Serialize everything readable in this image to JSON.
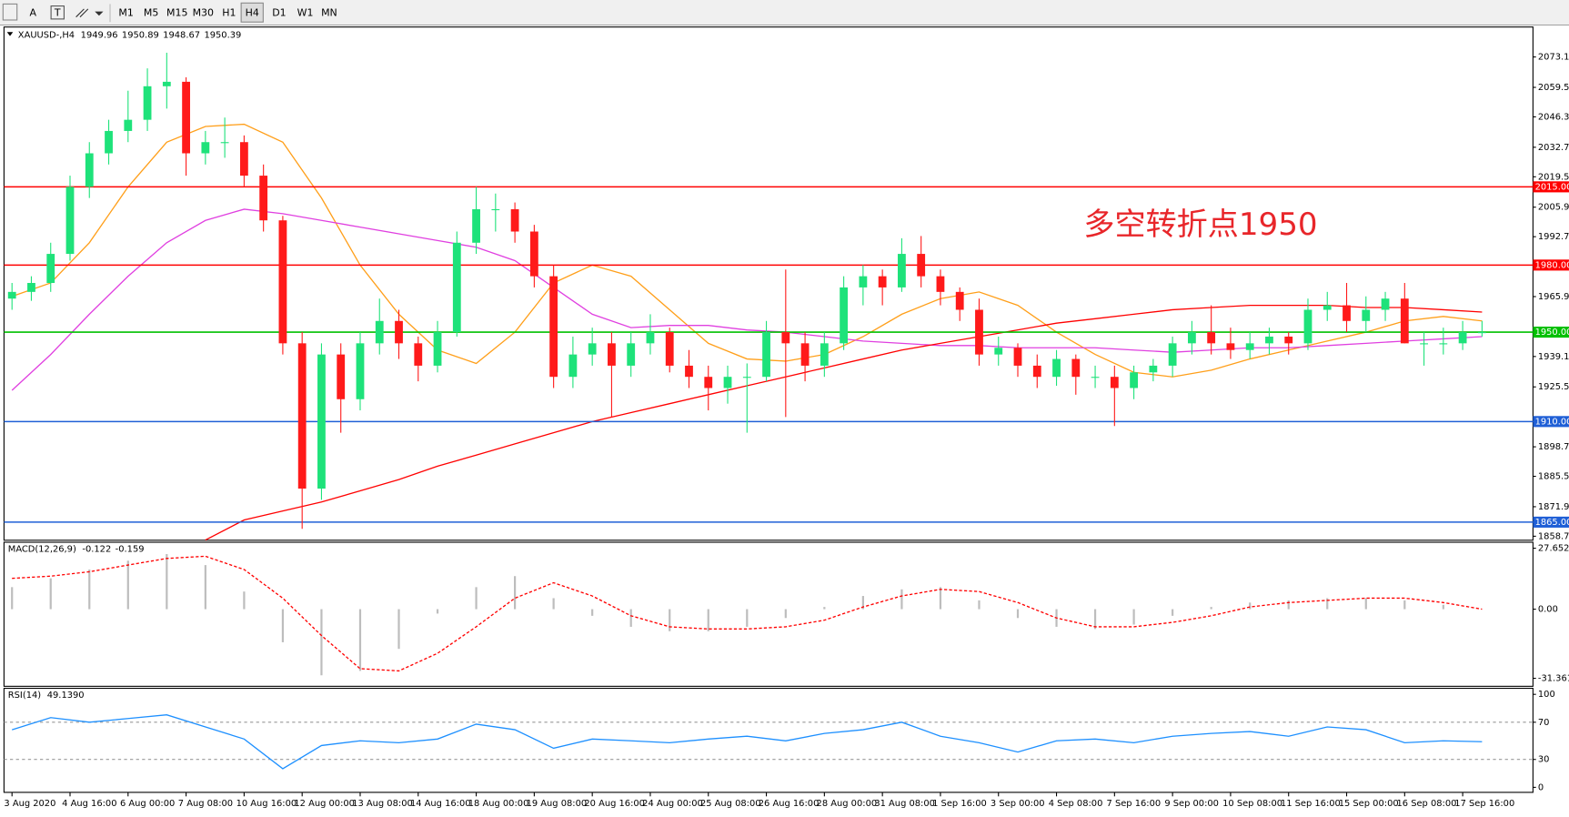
{
  "toolbar": {
    "buttons": [
      "A",
      "T"
    ],
    "periods": [
      "M1",
      "M5",
      "M15",
      "M30",
      "H1",
      "H4",
      "D1",
      "W1",
      "MN"
    ],
    "active": "H4"
  },
  "chart_data": [
    {
      "type": "candlestick",
      "title": "XAUUSD-,H4",
      "readout": [
        1949.96,
        1950.89,
        1948.67,
        1950.39
      ],
      "categories": [
        "3 Aug 2020",
        null,
        null,
        "4 Aug 16:00",
        null,
        null,
        "6 Aug 00:00",
        null,
        null,
        "7 Aug 08:00",
        null,
        null,
        "10 Aug 16:00",
        null,
        null,
        "12 Aug 00:00",
        null,
        null,
        "13 Aug 08:00",
        null,
        null,
        "14 Aug 16:00",
        null,
        null,
        "18 Aug 00:00",
        null,
        null,
        "19 Aug 08:00",
        null,
        null,
        "20 Aug 16:00",
        null,
        null,
        "24 Aug 00:00",
        null,
        null,
        "25 Aug 08:00",
        null,
        null,
        "26 Aug 16:00",
        null,
        null,
        "28 Aug 00:00",
        null,
        null,
        "31 Aug 08:00",
        null,
        null,
        "1 Sep 16:00",
        null,
        null,
        "3 Sep 00:00",
        null,
        null,
        "4 Sep 08:00",
        null,
        null,
        "7 Sep 16:00",
        null,
        null,
        "9 Sep 00:00",
        null,
        null,
        "10 Sep 08:00",
        null,
        null,
        "11 Sep 16:00",
        null,
        null,
        "15 Sep 00:00",
        null,
        null,
        "16 Sep 08:00",
        null,
        null,
        "17 Sep 16:00",
        null
      ],
      "candles": [
        [
          1965,
          1972,
          1960,
          1968
        ],
        [
          1968,
          1975,
          1964,
          1972
        ],
        [
          1972,
          1990,
          1968,
          1985
        ],
        [
          1985,
          2020,
          1982,
          2015
        ],
        [
          2015,
          2035,
          2010,
          2030
        ],
        [
          2030,
          2045,
          2025,
          2040
        ],
        [
          2040,
          2058,
          2035,
          2045
        ],
        [
          2045,
          2068,
          2040,
          2060
        ],
        [
          2060,
          2075,
          2050,
          2062
        ],
        [
          2062,
          2064,
          2020,
          2030
        ],
        [
          2030,
          2040,
          2025,
          2035
        ],
        [
          2035,
          2046,
          2028,
          2035
        ],
        [
          2035,
          2038,
          2015,
          2020
        ],
        [
          2020,
          2025,
          1995,
          2000
        ],
        [
          2000,
          2002,
          1940,
          1945
        ],
        [
          1945,
          1950,
          1862,
          1880
        ],
        [
          1880,
          1945,
          1875,
          1940
        ],
        [
          1940,
          1945,
          1905,
          1920
        ],
        [
          1920,
          1950,
          1915,
          1945
        ],
        [
          1945,
          1965,
          1940,
          1955
        ],
        [
          1955,
          1960,
          1938,
          1945
        ],
        [
          1945,
          1948,
          1928,
          1935
        ],
        [
          1935,
          1955,
          1932,
          1950
        ],
        [
          1950,
          1995,
          1948,
          1990
        ],
        [
          1990,
          2015,
          1985,
          2005
        ],
        [
          2005,
          2012,
          1995,
          2005
        ],
        [
          2005,
          2008,
          1990,
          1995
        ],
        [
          1995,
          1998,
          1970,
          1975
        ],
        [
          1975,
          1980,
          1925,
          1930
        ],
        [
          1930,
          1948,
          1925,
          1940
        ],
        [
          1940,
          1952,
          1935,
          1945
        ],
        [
          1945,
          1950,
          1912,
          1935
        ],
        [
          1935,
          1950,
          1930,
          1945
        ],
        [
          1945,
          1958,
          1940,
          1950
        ],
        [
          1950,
          1952,
          1932,
          1935
        ],
        [
          1935,
          1942,
          1925,
          1930
        ],
        [
          1930,
          1935,
          1915,
          1925
        ],
        [
          1925,
          1935,
          1918,
          1930
        ],
        [
          1930,
          1936,
          1905,
          1930
        ],
        [
          1930,
          1955,
          1928,
          1950
        ],
        [
          1950,
          1978,
          1912,
          1945
        ],
        [
          1945,
          1950,
          1928,
          1935
        ],
        [
          1935,
          1950,
          1930,
          1945
        ],
        [
          1945,
          1975,
          1942,
          1970
        ],
        [
          1970,
          1980,
          1962,
          1975
        ],
        [
          1975,
          1978,
          1962,
          1970
        ],
        [
          1970,
          1992,
          1968,
          1985
        ],
        [
          1985,
          1993,
          1970,
          1975
        ],
        [
          1975,
          1978,
          1962,
          1968
        ],
        [
          1968,
          1970,
          1955,
          1960
        ],
        [
          1960,
          1965,
          1935,
          1940
        ],
        [
          1940,
          1948,
          1935,
          1943
        ],
        [
          1943,
          1945,
          1930,
          1935
        ],
        [
          1935,
          1940,
          1925,
          1930
        ],
        [
          1930,
          1942,
          1926,
          1938
        ],
        [
          1938,
          1940,
          1922,
          1930
        ],
        [
          1930,
          1935,
          1925,
          1930
        ],
        [
          1930,
          1935,
          1908,
          1925
        ],
        [
          1925,
          1935,
          1920,
          1932
        ],
        [
          1932,
          1938,
          1928,
          1935
        ],
        [
          1935,
          1948,
          1930,
          1945
        ],
        [
          1945,
          1955,
          1940,
          1950
        ],
        [
          1950,
          1962,
          1940,
          1945
        ],
        [
          1945,
          1952,
          1938,
          1942
        ],
        [
          1942,
          1950,
          1938,
          1945
        ],
        [
          1945,
          1952,
          1940,
          1948
        ],
        [
          1948,
          1950,
          1940,
          1945
        ],
        [
          1945,
          1965,
          1942,
          1960
        ],
        [
          1960,
          1968,
          1955,
          1962
        ],
        [
          1962,
          1972,
          1950,
          1955
        ],
        [
          1955,
          1966,
          1950,
          1960
        ],
        [
          1960,
          1968,
          1955,
          1965
        ],
        [
          1965,
          1972,
          1945,
          1945
        ],
        [
          1945,
          1950,
          1935,
          1945
        ],
        [
          1945,
          1952,
          1940,
          1945
        ],
        [
          1945,
          1955,
          1942,
          1950
        ],
        [
          1950,
          1955,
          1948,
          1950
        ]
      ],
      "up_color": "#1ee27a",
      "down_color": "#ff1a1a",
      "lines": [
        {
          "color": "#ff9f1a",
          "values": [
            1966,
            1972,
            1990,
            2015,
            2035,
            2042,
            2043,
            2035,
            2010,
            1980,
            1958,
            1942,
            1936,
            1950,
            1972,
            1980,
            1975,
            1960,
            1945,
            1938,
            1937,
            1940,
            1948,
            1958,
            1965,
            1968,
            1962,
            1950,
            1940,
            1932,
            1930,
            1933,
            1938,
            1942,
            1946,
            1950,
            1955,
            1957,
            1955
          ]
        },
        {
          "color": "#e040e0",
          "values": [
            1924,
            1940,
            1958,
            1975,
            1990,
            2000,
            2005,
            2003,
            2000,
            1997,
            1994,
            1991,
            1988,
            1982,
            1970,
            1958,
            1952,
            1953,
            1953,
            1951,
            1950,
            1948,
            1946,
            1945,
            1944,
            1944,
            1943,
            1943,
            1943,
            1942,
            1941,
            1942,
            1943,
            1943,
            1944,
            1945,
            1946,
            1947,
            1948
          ]
        },
        {
          "color": "#ff0000",
          "values": [
            null,
            null,
            null,
            null,
            null,
            1857,
            1866,
            1870,
            1874,
            1879,
            1884,
            1890,
            1895,
            1900,
            1905,
            1910,
            1914,
            1918,
            1922,
            1926,
            1930,
            1934,
            1938,
            1942,
            1945,
            1948,
            1951,
            1954,
            1956,
            1958,
            1960,
            1961,
            1962,
            1962,
            1962,
            1961,
            1961,
            1960,
            1959
          ]
        }
      ],
      "levels": [
        {
          "value": 2015,
          "label": "2015.00",
          "color": "#ff0000"
        },
        {
          "value": 1980,
          "label": "1980.00",
          "color": "#ff0000"
        },
        {
          "value": 1950,
          "label": "1950.00",
          "color": "#00c000"
        },
        {
          "value": 1910,
          "label": "1910.00",
          "color": "#1f5fd6"
        },
        {
          "value": 1865,
          "label": "1865.00",
          "color": "#1f5fd6"
        }
      ],
      "annotation": "多空转折点1950",
      "ylim": [
        1856.9,
        2086.5
      ],
      "yticks": [
        {
          "value": 2073.1,
          "label": "2073.10"
        },
        {
          "value": 2059.5,
          "label": "2059.50"
        },
        {
          "value": 2046.3,
          "label": "2046.30"
        },
        {
          "value": 2032.7,
          "label": "2032.70"
        },
        {
          "value": 2019.5,
          "label": "2019.50"
        },
        {
          "value": 2005.9,
          "label": "2005.90"
        },
        {
          "value": 1992.7,
          "label": "1992.70"
        },
        {
          "value": 1965.9,
          "label": "1965.90"
        },
        {
          "value": 1939.1,
          "label": "1939.10"
        },
        {
          "value": 1925.5,
          "label": "1925.50"
        },
        {
          "value": 1898.7,
          "label": "1898.70"
        },
        {
          "value": 1885.5,
          "label": "1885.50"
        },
        {
          "value": 1871.9,
          "label": "1871.90"
        },
        {
          "value": 1858.7,
          "label": "1858.70"
        }
      ]
    },
    {
      "type": "macd",
      "title": "MACD(12,26,9)",
      "readout": [
        -0.122,
        -0.159
      ],
      "histogram": {
        "color": "#bdbdbd",
        "values": [
          10,
          14,
          18,
          22,
          25,
          20,
          8,
          -15,
          -30,
          -28,
          -18,
          -2,
          10,
          15,
          5,
          -3,
          -8,
          -10,
          -10,
          -8,
          -4,
          1,
          6,
          9,
          10,
          4,
          -4,
          -8,
          -9,
          -7,
          -3,
          1,
          3,
          4,
          5,
          5,
          4,
          2,
          0
        ]
      },
      "signal": {
        "color": "#ff0000",
        "values": [
          14,
          15,
          17,
          20,
          23,
          24,
          18,
          5,
          -12,
          -27,
          -28,
          -20,
          -8,
          5,
          12,
          6,
          -3,
          -8,
          -9,
          -9,
          -8,
          -5,
          1,
          6,
          9,
          8,
          3,
          -4,
          -8,
          -8,
          -6,
          -3,
          1,
          3,
          4,
          5,
          5,
          3,
          0
        ]
      },
      "ylim": [
        -34.99,
        30.37
      ],
      "yticks": [
        27.652,
        {
          "value": 0,
          "label": "0.00"
        },
        -31.361
      ]
    },
    {
      "type": "line",
      "title": "RSI(14)",
      "readout": [
        {
          "value": 49.139,
          "label": "49.1390"
        }
      ],
      "series": [
        {
          "color": "#1e90ff",
          "values": [
            62,
            75,
            70,
            74,
            78,
            65,
            52,
            20,
            45,
            50,
            48,
            52,
            68,
            62,
            42,
            52,
            50,
            48,
            52,
            55,
            50,
            58,
            62,
            70,
            55,
            48,
            38,
            50,
            52,
            48,
            55,
            58,
            60,
            55,
            65,
            62,
            48,
            50,
            49
          ]
        }
      ],
      "levels": [
        70,
        30
      ],
      "ylim": [
        -5.4,
        106.5
      ],
      "yticks": [
        100,
        70,
        30,
        0
      ]
    }
  ]
}
